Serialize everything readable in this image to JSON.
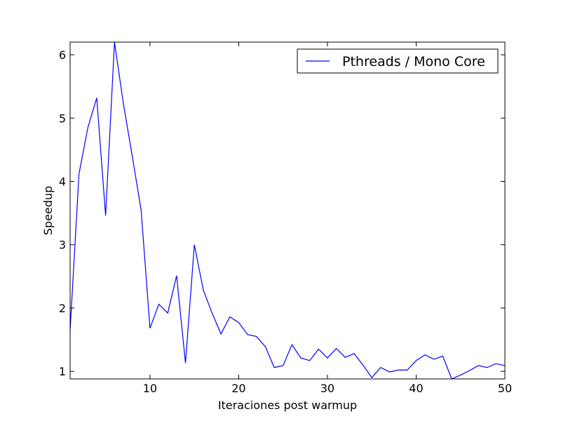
{
  "chart_data": {
    "type": "line",
    "title": "",
    "xlabel": "Iteraciones post warmup",
    "ylabel": "Speedup",
    "xlim": [
      1,
      50
    ],
    "ylim": [
      0.88,
      6.2
    ],
    "xticks": [
      10,
      20,
      30,
      40,
      50
    ],
    "yticks": [
      1,
      2,
      3,
      4,
      5,
      6
    ],
    "grid": false,
    "legend_position": "top-right",
    "series": [
      {
        "name": "Pthreads / Mono Core",
        "color": "#0000ff",
        "x": [
          1,
          2,
          3,
          4,
          5,
          6,
          7,
          8,
          9,
          10,
          11,
          12,
          13,
          14,
          15,
          16,
          17,
          18,
          19,
          20,
          21,
          22,
          23,
          24,
          25,
          26,
          27,
          28,
          29,
          30,
          31,
          32,
          33,
          34,
          35,
          36,
          37,
          38,
          39,
          40,
          41,
          42,
          43,
          44,
          45,
          46,
          47,
          48,
          49,
          50
        ],
        "y": [
          1.65,
          4.12,
          4.85,
          5.32,
          3.46,
          6.2,
          5.23,
          4.4,
          3.55,
          1.68,
          2.06,
          1.92,
          2.51,
          1.13,
          3.0,
          2.29,
          1.92,
          1.59,
          1.86,
          1.77,
          1.58,
          1.55,
          1.39,
          1.06,
          1.09,
          1.42,
          1.21,
          1.17,
          1.35,
          1.21,
          1.36,
          1.22,
          1.28,
          1.1,
          0.9,
          1.06,
          0.99,
          1.02,
          1.02,
          1.17,
          1.26,
          1.19,
          1.24,
          0.88,
          0.94,
          1.01,
          1.09,
          1.06,
          1.12,
          1.09
        ]
      }
    ]
  }
}
